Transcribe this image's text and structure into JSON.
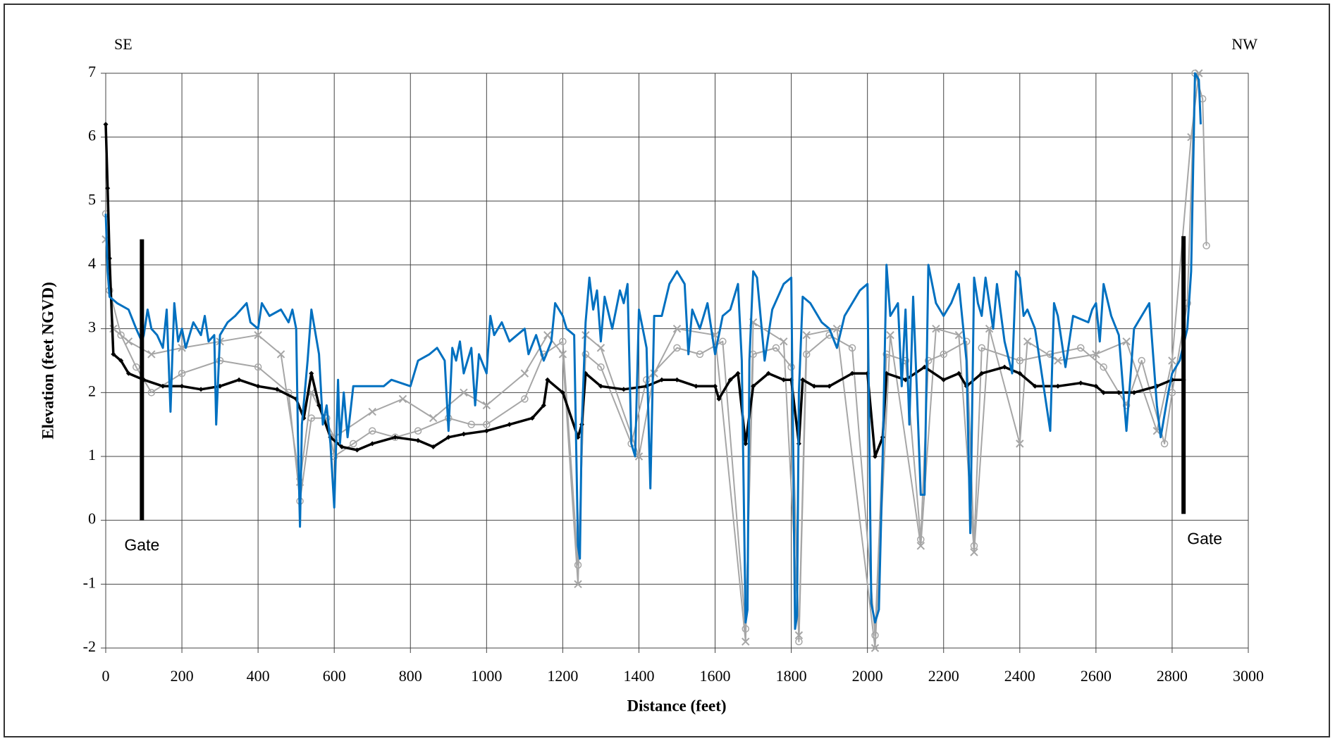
{
  "chart_data": {
    "type": "line",
    "xlabel": "Distance (feet)",
    "ylabel": "Elevation (feet NGVD)",
    "annotations": [
      {
        "text": "SE",
        "position": "top-left"
      },
      {
        "text": "NW",
        "position": "top-right"
      }
    ],
    "gates": [
      {
        "label": "Gate",
        "x": 95,
        "y0": 0,
        "y1": 4.4
      },
      {
        "label": "Gate",
        "x": 2830,
        "y0": 0.1,
        "y1": 4.45
      }
    ],
    "xlim": [
      0,
      3000
    ],
    "xticks": [
      0,
      200,
      400,
      600,
      800,
      1000,
      1200,
      1400,
      1600,
      1800,
      2000,
      2200,
      2400,
      2600,
      2800,
      3000
    ],
    "ylim": [
      -2,
      7
    ],
    "yticks": [
      -2,
      -1,
      0,
      1,
      2,
      3,
      4,
      5,
      6,
      7
    ],
    "grid": true,
    "series": [
      {
        "color": "#a6a6a6",
        "marker": "circle",
        "x": [
          0,
          10,
          40,
          80,
          120,
          200,
          300,
          400,
          480,
          510,
          540,
          580,
          600,
          650,
          700,
          760,
          820,
          900,
          960,
          1000,
          1100,
          1150,
          1200,
          1240,
          1260,
          1300,
          1380,
          1420,
          1500,
          1560,
          1620,
          1680,
          1700,
          1760,
          1800,
          1820,
          1840,
          1900,
          1960,
          2020,
          2050,
          2100,
          2140,
          2160,
          2200,
          2260,
          2280,
          2300,
          2400,
          2480,
          2560,
          2620,
          2680,
          2720,
          2780,
          2800,
          2840,
          2860,
          2880,
          2890
        ],
        "values": [
          4.8,
          3.6,
          2.9,
          2.4,
          2.0,
          2.3,
          2.5,
          2.4,
          2.0,
          0.3,
          1.6,
          1.6,
          1.0,
          1.2,
          1.4,
          1.3,
          1.4,
          1.6,
          1.5,
          1.5,
          1.9,
          2.6,
          2.8,
          -0.7,
          2.6,
          2.4,
          1.2,
          2.2,
          2.7,
          2.6,
          2.8,
          -1.7,
          2.6,
          2.7,
          2.4,
          -1.9,
          2.6,
          2.9,
          2.7,
          -1.8,
          2.6,
          2.5,
          -0.3,
          2.5,
          2.6,
          2.8,
          -0.4,
          2.7,
          2.5,
          2.6,
          2.7,
          2.4,
          1.8,
          2.5,
          1.2,
          2.0,
          3.4,
          7.0,
          6.6,
          4.3
        ]
      },
      {
        "color": "#a6a6a6",
        "marker": "x",
        "x": [
          0,
          20,
          60,
          120,
          200,
          300,
          400,
          460,
          510,
          540,
          600,
          700,
          780,
          860,
          940,
          1000,
          1100,
          1160,
          1200,
          1240,
          1260,
          1300,
          1400,
          1440,
          1500,
          1600,
          1680,
          1700,
          1780,
          1820,
          1840,
          1920,
          2020,
          2060,
          2140,
          2180,
          2240,
          2280,
          2320,
          2400,
          2420,
          2500,
          2600,
          2680,
          2760,
          2800,
          2850,
          2870
        ],
        "values": [
          4.4,
          3.0,
          2.8,
          2.6,
          2.7,
          2.8,
          2.9,
          2.6,
          0.6,
          2.0,
          1.3,
          1.7,
          1.9,
          1.6,
          2.0,
          1.8,
          2.3,
          2.9,
          2.6,
          -1.0,
          2.9,
          2.7,
          1.0,
          2.3,
          3.0,
          2.9,
          -1.9,
          3.1,
          2.8,
          -1.8,
          2.9,
          3.0,
          -2.0,
          2.9,
          -0.4,
          3.0,
          2.9,
          -0.5,
          3.0,
          1.2,
          2.8,
          2.5,
          2.6,
          2.8,
          1.4,
          2.5,
          6.0,
          7.0
        ]
      },
      {
        "color": "#000000",
        "marker": "diamond",
        "x": [
          0,
          5,
          10,
          20,
          40,
          60,
          100,
          150,
          200,
          250,
          300,
          350,
          400,
          450,
          500,
          520,
          540,
          560,
          590,
          620,
          660,
          700,
          760,
          820,
          860,
          900,
          940,
          1000,
          1060,
          1120,
          1150,
          1160,
          1200,
          1240,
          1250,
          1260,
          1300,
          1360,
          1420,
          1460,
          1500,
          1550,
          1600,
          1610,
          1640,
          1660,
          1680,
          1700,
          1740,
          1780,
          1800,
          1820,
          1830,
          1860,
          1900,
          1960,
          2000,
          2020,
          2040,
          2050,
          2100,
          2150,
          2200,
          2240,
          2260,
          2300,
          2360,
          2400,
          2440,
          2500,
          2560,
          2600,
          2620,
          2660,
          2700,
          2760,
          2800,
          2830
        ],
        "values": [
          6.2,
          5.2,
          4.1,
          2.6,
          2.5,
          2.3,
          2.2,
          2.1,
          2.1,
          2.05,
          2.1,
          2.2,
          2.1,
          2.05,
          1.9,
          1.6,
          2.3,
          1.8,
          1.3,
          1.15,
          1.1,
          1.2,
          1.3,
          1.25,
          1.15,
          1.3,
          1.35,
          1.4,
          1.5,
          1.6,
          1.8,
          2.2,
          2.0,
          1.3,
          1.5,
          2.3,
          2.1,
          2.05,
          2.1,
          2.2,
          2.2,
          2.1,
          2.1,
          1.9,
          2.2,
          2.3,
          1.2,
          2.1,
          2.3,
          2.2,
          2.2,
          1.2,
          2.2,
          2.1,
          2.1,
          2.3,
          2.3,
          1.0,
          1.3,
          2.3,
          2.2,
          2.4,
          2.2,
          2.3,
          2.1,
          2.3,
          2.4,
          2.3,
          2.1,
          2.1,
          2.15,
          2.1,
          2.0,
          2.0,
          2.0,
          2.1,
          2.2,
          2.2
        ]
      },
      {
        "color": "#0070c0",
        "marker": "none",
        "x": [
          0,
          5,
          10,
          30,
          60,
          80,
          95,
          100,
          110,
          120,
          135,
          150,
          160,
          170,
          175,
          180,
          190,
          200,
          210,
          230,
          250,
          260,
          270,
          285,
          290,
          300,
          320,
          340,
          370,
          380,
          400,
          410,
          430,
          460,
          480,
          490,
          500,
          505,
          510,
          515,
          530,
          540,
          560,
          570,
          580,
          590,
          600,
          610,
          615,
          625,
          635,
          650,
          700,
          730,
          750,
          800,
          820,
          850,
          870,
          890,
          900,
          910,
          920,
          930,
          940,
          960,
          970,
          980,
          1000,
          1010,
          1020,
          1040,
          1060,
          1080,
          1100,
          1110,
          1130,
          1150,
          1170,
          1180,
          1200,
          1210,
          1230,
          1240,
          1245,
          1250,
          1260,
          1270,
          1280,
          1290,
          1300,
          1310,
          1330,
          1350,
          1360,
          1370,
          1380,
          1390,
          1400,
          1410,
          1420,
          1430,
          1440,
          1460,
          1480,
          1500,
          1520,
          1530,
          1540,
          1560,
          1580,
          1600,
          1620,
          1640,
          1660,
          1670,
          1680,
          1685,
          1690,
          1700,
          1710,
          1730,
          1750,
          1780,
          1800,
          1810,
          1815,
          1820,
          1830,
          1850,
          1880,
          1900,
          1920,
          1940,
          1960,
          1980,
          2000,
          2010,
          2020,
          2030,
          2040,
          2050,
          2060,
          2080,
          2090,
          2100,
          2110,
          2120,
          2130,
          2140,
          2150,
          2160,
          2180,
          2200,
          2220,
          2240,
          2260,
          2270,
          2280,
          2290,
          2300,
          2310,
          2330,
          2340,
          2360,
          2380,
          2390,
          2400,
          2410,
          2420,
          2440,
          2480,
          2490,
          2500,
          2520,
          2540,
          2580,
          2590,
          2600,
          2610,
          2620,
          2640,
          2660,
          2680,
          2700,
          2720,
          2740,
          2760,
          2770,
          2790,
          2800,
          2820,
          2840,
          2850,
          2860,
          2870,
          2875
        ],
        "values": [
          4.8,
          3.9,
          3.5,
          3.4,
          3.3,
          3.0,
          2.8,
          2.9,
          3.3,
          3.0,
          2.9,
          2.7,
          3.3,
          1.7,
          2.6,
          3.4,
          2.8,
          3.0,
          2.7,
          3.1,
          2.9,
          3.2,
          2.8,
          2.9,
          1.5,
          2.9,
          3.1,
          3.2,
          3.4,
          3.1,
          3.0,
          3.4,
          3.2,
          3.3,
          3.1,
          3.3,
          3.0,
          1.2,
          -0.1,
          1.5,
          2.5,
          3.3,
          2.6,
          1.5,
          1.8,
          1.2,
          0.2,
          2.2,
          1.2,
          2.0,
          1.3,
          2.1,
          2.1,
          2.1,
          2.2,
          2.1,
          2.5,
          2.6,
          2.7,
          2.5,
          1.4,
          2.7,
          2.5,
          2.8,
          2.3,
          2.7,
          1.8,
          2.6,
          2.3,
          3.2,
          2.9,
          3.1,
          2.8,
          2.9,
          3.0,
          2.6,
          2.9,
          2.5,
          2.8,
          3.4,
          3.2,
          3.0,
          2.9,
          -0.4,
          -0.6,
          1.5,
          3.1,
          3.8,
          3.3,
          3.6,
          2.8,
          3.5,
          3.0,
          3.6,
          3.4,
          3.7,
          1.2,
          1.0,
          3.3,
          3.0,
          2.7,
          0.5,
          3.2,
          3.2,
          3.7,
          3.9,
          3.7,
          2.6,
          3.3,
          3.0,
          3.4,
          2.6,
          3.2,
          3.3,
          3.7,
          2.5,
          -1.6,
          -1.4,
          2.5,
          3.9,
          3.8,
          2.5,
          3.3,
          3.7,
          3.8,
          -1.7,
          -1.5,
          2.0,
          3.5,
          3.4,
          3.1,
          3.0,
          2.7,
          3.2,
          3.4,
          3.6,
          3.7,
          -1.3,
          -1.6,
          -1.4,
          1.0,
          4.0,
          3.2,
          3.4,
          2.1,
          3.3,
          1.5,
          3.5,
          2.0,
          0.4,
          0.4,
          4.0,
          3.4,
          3.2,
          3.4,
          3.7,
          2.5,
          -0.2,
          3.8,
          3.4,
          3.2,
          3.8,
          3.0,
          3.7,
          2.8,
          2.3,
          3.9,
          3.8,
          3.2,
          3.3,
          3.0,
          1.4,
          3.4,
          3.2,
          2.4,
          3.2,
          3.1,
          3.3,
          3.4,
          2.8,
          3.7,
          3.2,
          2.9,
          1.4,
          3.0,
          3.2,
          3.4,
          1.8,
          1.3,
          2.0,
          2.3,
          2.5,
          3.0,
          3.9,
          7.0,
          6.9,
          6.2
        ]
      }
    ]
  }
}
